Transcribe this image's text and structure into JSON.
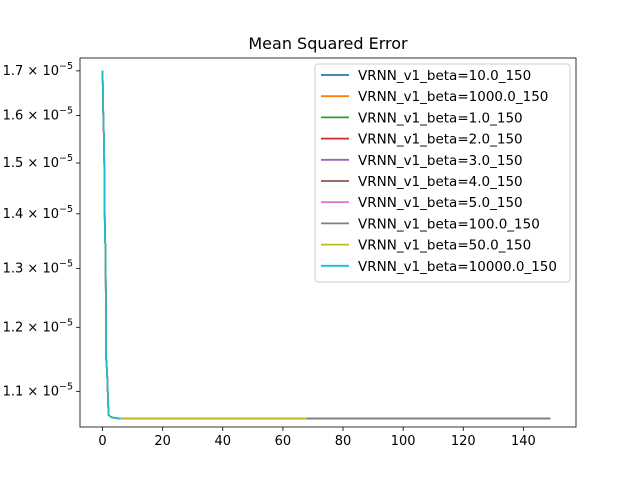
{
  "chart_data": {
    "type": "line",
    "title": "Mean Squared Error",
    "xlabel": "",
    "ylabel": "",
    "yscale": "log",
    "xlim": [
      -7.5,
      157.5
    ],
    "ylim": [
      1.048e-05,
      1.73e-05
    ],
    "x_ticks": [
      0,
      20,
      40,
      60,
      80,
      100,
      120,
      140
    ],
    "x_tick_labels": [
      "0",
      "20",
      "40",
      "60",
      "80",
      "100",
      "120",
      "140"
    ],
    "y_ticks": [
      1.1e-05,
      1.2e-05,
      1.3e-05,
      1.4e-05,
      1.5e-05,
      1.6e-05,
      1.7e-05
    ],
    "y_tick_mantissas": [
      "1.1",
      "1.2",
      "1.3",
      "1.4",
      "1.5",
      "1.6",
      "1.7"
    ],
    "y_tick_base": "10",
    "y_tick_exponent": "−5",
    "grid": false,
    "legend_position": "upper-right",
    "series": [
      {
        "name": "VRNN_v1_beta=10.0_150",
        "color": "#1f77b4",
        "x_end": 149
      },
      {
        "name": "VRNN_v1_beta=1000.0_150",
        "color": "#ff7f0e",
        "x_end": 149
      },
      {
        "name": "VRNN_v1_beta=1.0_150",
        "color": "#2ca02c",
        "x_end": 149
      },
      {
        "name": "VRNN_v1_beta=2.0_150",
        "color": "#d62728",
        "x_end": 149
      },
      {
        "name": "VRNN_v1_beta=3.0_150",
        "color": "#9467bd",
        "x_end": 149
      },
      {
        "name": "VRNN_v1_beta=4.0_150",
        "color": "#8c564b",
        "x_end": 149
      },
      {
        "name": "VRNN_v1_beta=5.0_150",
        "color": "#e377c2",
        "x_end": 149
      },
      {
        "name": "VRNN_v1_beta=100.0_150",
        "color": "#7f7f7f",
        "x_end": 149
      },
      {
        "name": "VRNN_v1_beta=50.0_150",
        "color": "#bcbd22",
        "x_end": 68
      },
      {
        "name": "VRNN_v1_beta=10000.0_150",
        "color": "#17becf",
        "x_end": 6
      }
    ],
    "shared_curve": {
      "x": [
        0,
        0.3,
        0.5,
        0.8,
        1,
        1.2,
        1.5,
        2,
        3,
        4,
        5,
        6,
        10,
        20,
        40,
        68,
        100,
        149
      ],
      "y": [
        1.7e-05,
        1.58e-05,
        1.55e-05,
        1.35e-05,
        1.34e-05,
        1.15e-05,
        1.13e-05,
        1.065e-05,
        1.062e-05,
        1.061e-05,
        1.0605e-05,
        1.0603e-05,
        1.0602e-05,
        1.0602e-05,
        1.0602e-05,
        1.0602e-05,
        1.0602e-05,
        1.0602e-05
      ]
    }
  }
}
